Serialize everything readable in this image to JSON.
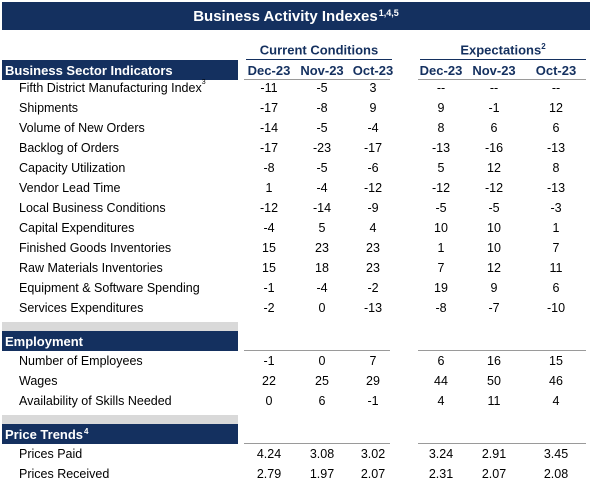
{
  "title": {
    "text": "Business Activity Indexes",
    "note": "1,4,5"
  },
  "column_groups": {
    "current": {
      "label": "Current Conditions",
      "note": ""
    },
    "expectations": {
      "label": "Expectations",
      "note": "2"
    }
  },
  "columns": [
    "Dec-23",
    "Nov-23",
    "Oct-23",
    "Dec-23",
    "Nov-23",
    "Oct-23"
  ],
  "sections": [
    {
      "title": "Business Sector Indicators",
      "note": "",
      "rows": [
        {
          "label": "Fifth District Manufacturing Index",
          "note": "3",
          "values": [
            "-11",
            "-5",
            "3",
            "--",
            "--",
            "--"
          ]
        },
        {
          "label": "Shipments",
          "note": "",
          "values": [
            "-17",
            "-8",
            "9",
            "9",
            "-1",
            "12"
          ]
        },
        {
          "label": "Volume of New Orders",
          "note": "",
          "values": [
            "-14",
            "-5",
            "-4",
            "8",
            "6",
            "6"
          ]
        },
        {
          "label": "Backlog of Orders",
          "note": "",
          "values": [
            "-17",
            "-23",
            "-17",
            "-13",
            "-16",
            "-13"
          ]
        },
        {
          "label": "Capacity Utilization",
          "note": "",
          "values": [
            "-8",
            "-5",
            "-6",
            "5",
            "12",
            "8"
          ]
        },
        {
          "label": "Vendor Lead Time",
          "note": "",
          "values": [
            "1",
            "-4",
            "-12",
            "-12",
            "-12",
            "-13"
          ]
        },
        {
          "label": "Local Business Conditions",
          "note": "",
          "values": [
            "-12",
            "-14",
            "-9",
            "-5",
            "-5",
            "-3"
          ]
        },
        {
          "label": "Capital Expenditures",
          "note": "",
          "values": [
            "-4",
            "5",
            "4",
            "10",
            "10",
            "1"
          ]
        },
        {
          "label": "Finished Goods Inventories",
          "note": "",
          "values": [
            "15",
            "23",
            "23",
            "1",
            "10",
            "7"
          ]
        },
        {
          "label": "Raw Materials Inventories",
          "note": "",
          "values": [
            "15",
            "18",
            "23",
            "7",
            "12",
            "11"
          ]
        },
        {
          "label": "Equipment & Software Spending",
          "note": "",
          "values": [
            "-1",
            "-4",
            "-2",
            "19",
            "9",
            "6"
          ]
        },
        {
          "label": "Services Expenditures",
          "note": "",
          "values": [
            "-2",
            "0",
            "-13",
            "-8",
            "-7",
            "-10"
          ]
        }
      ]
    },
    {
      "title": "Employment",
      "note": "",
      "rows": [
        {
          "label": "Number of Employees",
          "note": "",
          "values": [
            "-1",
            "0",
            "7",
            "6",
            "16",
            "15"
          ]
        },
        {
          "label": "Wages",
          "note": "",
          "values": [
            "22",
            "25",
            "29",
            "44",
            "50",
            "46"
          ]
        },
        {
          "label": "Availability of Skills Needed",
          "note": "",
          "values": [
            "0",
            "6",
            "-1",
            "4",
            "11",
            "4"
          ]
        }
      ]
    },
    {
      "title": "Price Trends",
      "note": "4",
      "rows": [
        {
          "label": "Prices Paid",
          "note": "",
          "values": [
            "4.24",
            "3.08",
            "3.02",
            "3.24",
            "2.91",
            "3.45"
          ]
        },
        {
          "label": "Prices Received",
          "note": "",
          "values": [
            "2.79",
            "1.97",
            "2.07",
            "2.31",
            "2.07",
            "2.08"
          ]
        }
      ]
    }
  ],
  "colors": {
    "navy": "#14305f",
    "gap_gray": "#d9d9d9"
  }
}
